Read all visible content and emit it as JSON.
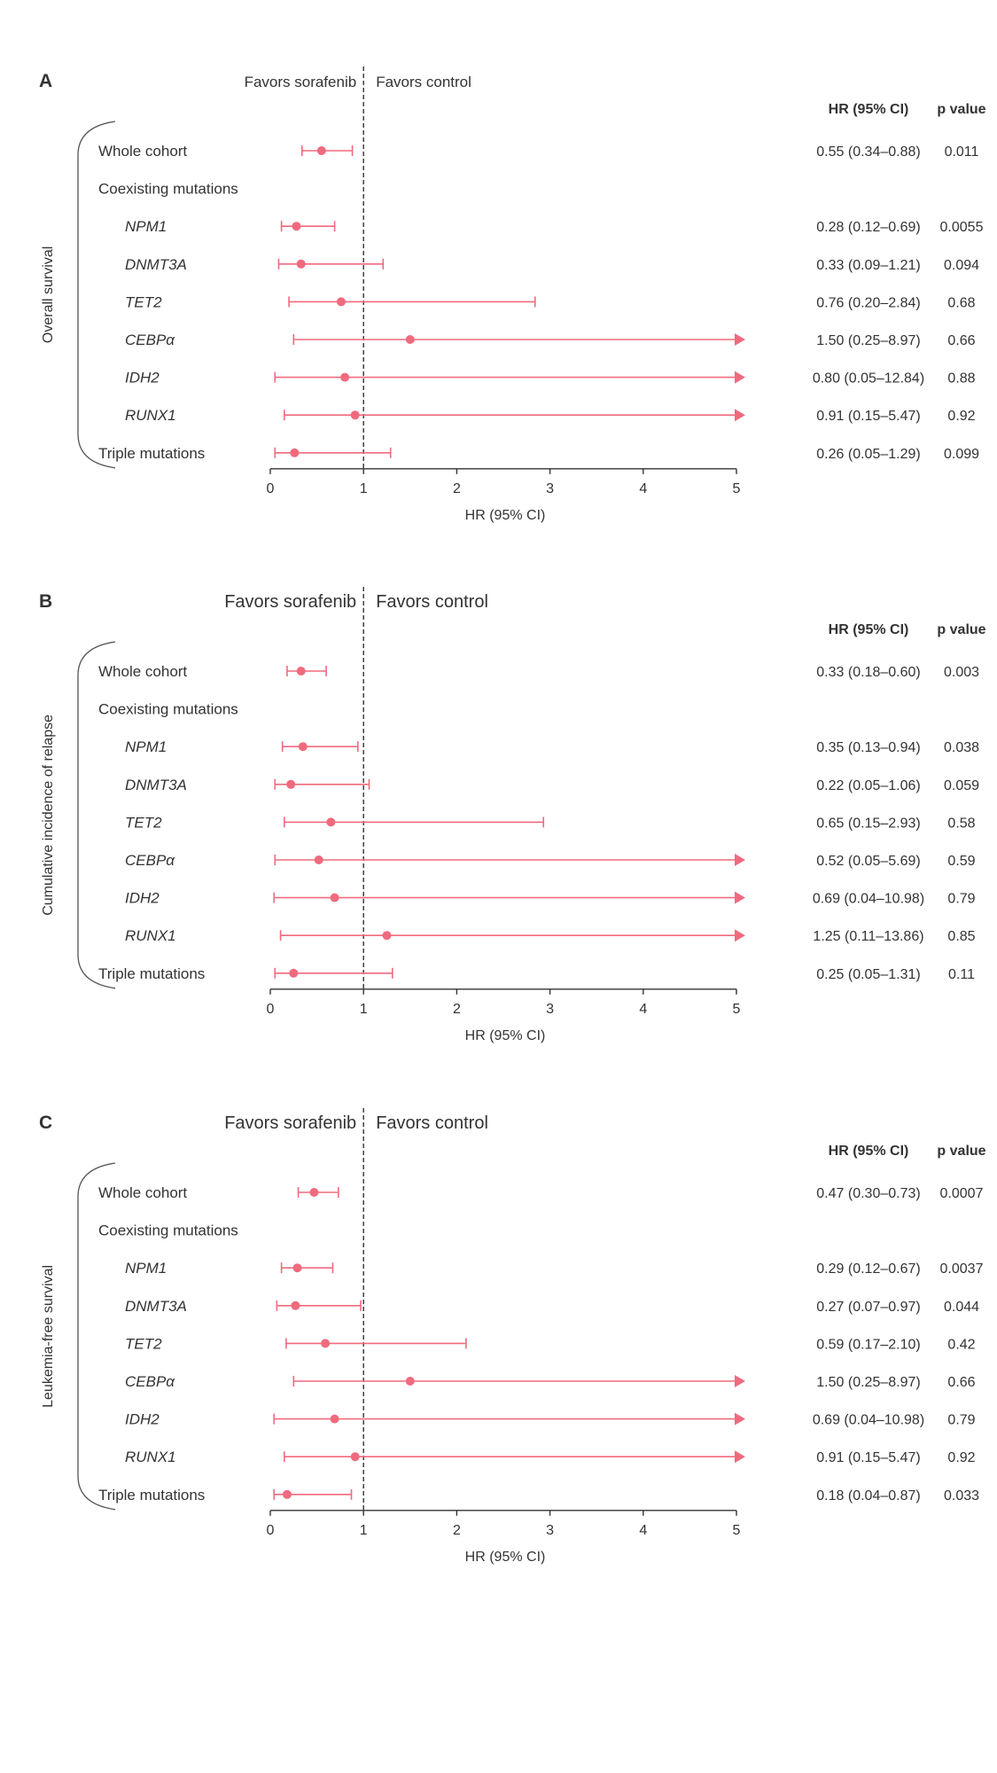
{
  "colors": {
    "marker": "#f06a7e",
    "text": "#333333",
    "axis": "#333333"
  },
  "chart_data": [
    {
      "type": "forest",
      "panel": "A",
      "outcome_label": "Overall survival",
      "favors_left": "Favors sorafenib",
      "favors_right": "Favors control",
      "hr_header": "HR (95% CI)",
      "p_header": "p value",
      "xlabel": "HR (95% CI)",
      "xlim": [
        0,
        5
      ],
      "ticks": [
        "0",
        "1",
        "2",
        "3",
        "4",
        "5"
      ],
      "reference_line": 1,
      "rows": [
        {
          "label": "Whole cohort",
          "italic": false,
          "hr": 0.55,
          "lo": 0.34,
          "hi": 0.88,
          "hr_text": "0.55 (0.34–0.88)",
          "p": "0.011"
        },
        {
          "label": "Coexisting mutations",
          "header": true
        },
        {
          "label": "NPM1",
          "italic": true,
          "hr": 0.28,
          "lo": 0.12,
          "hi": 0.69,
          "hr_text": "0.28 (0.12–0.69)",
          "p": "0.0055"
        },
        {
          "label": "DNMT3A",
          "italic": true,
          "hr": 0.33,
          "lo": 0.09,
          "hi": 1.21,
          "hr_text": "0.33 (0.09–1.21)",
          "p": "0.094"
        },
        {
          "label": "TET2",
          "italic": true,
          "hr": 0.76,
          "lo": 0.2,
          "hi": 2.84,
          "hr_text": "0.76 (0.20–2.84)",
          "p": "0.68"
        },
        {
          "label": "CEBPα",
          "italic": true,
          "hr": 1.5,
          "lo": 0.25,
          "hi": 8.97,
          "hr_text": "1.50 (0.25–8.97)",
          "p": "0.66"
        },
        {
          "label": "IDH2",
          "italic": true,
          "hr": 0.8,
          "lo": 0.05,
          "hi": 12.84,
          "hr_text": "0.80 (0.05–12.84)",
          "p": "0.88"
        },
        {
          "label": "RUNX1",
          "italic": true,
          "hr": 0.91,
          "lo": 0.15,
          "hi": 5.47,
          "hr_text": "0.91 (0.15–5.47)",
          "p": "0.92"
        },
        {
          "label": "Triple mutations",
          "italic": false,
          "hr": 0.26,
          "lo": 0.05,
          "hi": 1.29,
          "hr_text": "0.26 (0.05–1.29)",
          "p": "0.099"
        }
      ]
    },
    {
      "type": "forest",
      "panel": "B",
      "outcome_label": "Cumulative incidence of relapse",
      "favors_left": "Favors sorafenib",
      "favors_right": "Favors control",
      "hr_header": "HR (95% CI)",
      "p_header": "p value",
      "xlabel": "HR (95% CI)",
      "xlim": [
        0,
        5
      ],
      "ticks": [
        "0",
        "1",
        "2",
        "3",
        "4",
        "5"
      ],
      "reference_line": 1,
      "rows": [
        {
          "label": "Whole cohort",
          "italic": false,
          "hr": 0.33,
          "lo": 0.18,
          "hi": 0.6,
          "hr_text": "0.33 (0.18–0.60)",
          "p": "0.003"
        },
        {
          "label": "Coexisting mutations",
          "header": true
        },
        {
          "label": "NPM1",
          "italic": true,
          "hr": 0.35,
          "lo": 0.13,
          "hi": 0.94,
          "hr_text": "0.35 (0.13–0.94)",
          "p": "0.038"
        },
        {
          "label": "DNMT3A",
          "italic": true,
          "hr": 0.22,
          "lo": 0.05,
          "hi": 1.06,
          "hr_text": "0.22 (0.05–1.06)",
          "p": "0.059"
        },
        {
          "label": "TET2",
          "italic": true,
          "hr": 0.65,
          "lo": 0.15,
          "hi": 2.93,
          "hr_text": "0.65 (0.15–2.93)",
          "p": "0.58"
        },
        {
          "label": "CEBPα",
          "italic": true,
          "hr": 0.52,
          "lo": 0.05,
          "hi": 5.69,
          "hr_text": "0.52 (0.05–5.69)",
          "p": "0.59"
        },
        {
          "label": "IDH2",
          "italic": true,
          "hr": 0.69,
          "lo": 0.04,
          "hi": 10.98,
          "hr_text": "0.69 (0.04–10.98)",
          "p": "0.79"
        },
        {
          "label": "RUNX1",
          "italic": true,
          "hr": 1.25,
          "lo": 0.11,
          "hi": 13.86,
          "hr_text": "1.25 (0.11–13.86)",
          "p": "0.85"
        },
        {
          "label": "Triple mutations",
          "italic": false,
          "hr": 0.25,
          "lo": 0.05,
          "hi": 1.31,
          "hr_text": "0.25 (0.05–1.31)",
          "p": "0.11"
        }
      ]
    },
    {
      "type": "forest",
      "panel": "C",
      "outcome_label": "Leukemia-free survival",
      "favors_left": "Favors sorafenib",
      "favors_right": "Favors control",
      "hr_header": "HR (95% CI)",
      "p_header": "p value",
      "xlabel": "HR (95% CI)",
      "xlim": [
        0,
        5
      ],
      "ticks": [
        "0",
        "1",
        "2",
        "3",
        "4",
        "5"
      ],
      "reference_line": 1,
      "rows": [
        {
          "label": "Whole cohort",
          "italic": false,
          "hr": 0.47,
          "lo": 0.3,
          "hi": 0.73,
          "hr_text": "0.47 (0.30–0.73)",
          "p": "0.0007"
        },
        {
          "label": "Coexisting mutations",
          "header": true
        },
        {
          "label": "NPM1",
          "italic": true,
          "hr": 0.29,
          "lo": 0.12,
          "hi": 0.67,
          "hr_text": "0.29 (0.12–0.67)",
          "p": "0.0037"
        },
        {
          "label": "DNMT3A",
          "italic": true,
          "hr": 0.27,
          "lo": 0.07,
          "hi": 0.97,
          "hr_text": "0.27 (0.07–0.97)",
          "p": "0.044"
        },
        {
          "label": "TET2",
          "italic": true,
          "hr": 0.59,
          "lo": 0.17,
          "hi": 2.1,
          "hr_text": "0.59 (0.17–2.10)",
          "p": "0.42"
        },
        {
          "label": "CEBPα",
          "italic": true,
          "hr": 1.5,
          "lo": 0.25,
          "hi": 8.97,
          "hr_text": "1.50 (0.25–8.97)",
          "p": "0.66"
        },
        {
          "label": "IDH2",
          "italic": true,
          "hr": 0.69,
          "lo": 0.04,
          "hi": 10.98,
          "hr_text": "0.69 (0.04–10.98)",
          "p": "0.79"
        },
        {
          "label": "RUNX1",
          "italic": true,
          "hr": 0.91,
          "lo": 0.15,
          "hi": 5.47,
          "hr_text": "0.91 (0.15–5.47)",
          "p": "0.92"
        },
        {
          "label": "Triple mutations",
          "italic": false,
          "hr": 0.18,
          "lo": 0.04,
          "hi": 0.87,
          "hr_text": "0.18 (0.04–0.87)",
          "p": "0.033"
        }
      ]
    }
  ]
}
